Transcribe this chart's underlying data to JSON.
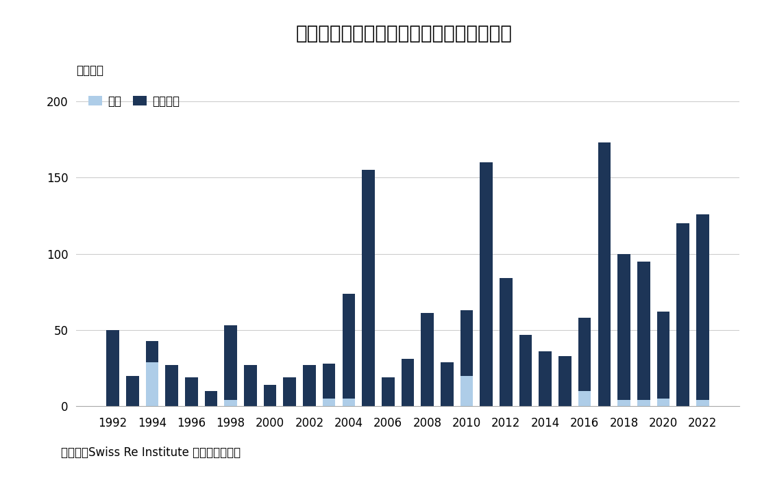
{
  "title": "図表１　世界の自然災害による保険損害額",
  "ylabel": "十億ドル",
  "source": "（資料）Swiss Re Institute を元に筆者作成",
  "years": [
    1992,
    1993,
    1994,
    1995,
    1996,
    1997,
    1998,
    1999,
    2000,
    2001,
    2002,
    2003,
    2004,
    2005,
    2006,
    2007,
    2008,
    2009,
    2010,
    2011,
    2012,
    2013,
    2014,
    2015,
    2016,
    2017,
    2018,
    2019,
    2020,
    2021,
    2022
  ],
  "earthquake": [
    0,
    0,
    29,
    0,
    0,
    0,
    4,
    0,
    0,
    0,
    0,
    5,
    5,
    0,
    0,
    0,
    0,
    0,
    20,
    0,
    0,
    0,
    0,
    0,
    10,
    0,
    4,
    4,
    5,
    0,
    4
  ],
  "climate": [
    50,
    20,
    14,
    27,
    19,
    10,
    49,
    27,
    14,
    19,
    27,
    23,
    69,
    155,
    19,
    31,
    61,
    29,
    43,
    160,
    84,
    47,
    36,
    33,
    48,
    173,
    96,
    91,
    57,
    120,
    122
  ],
  "earthquake_color": "#aecde8",
  "climate_color": "#1d3557",
  "background_color": "#ffffff",
  "legend_earthquake": "地震",
  "legend_climate": "気候関連",
  "ylim": [
    0,
    210
  ],
  "yticks": [
    0,
    50,
    100,
    150,
    200
  ],
  "xtick_years": [
    1992,
    1994,
    1996,
    1998,
    2000,
    2002,
    2004,
    2006,
    2008,
    2010,
    2012,
    2014,
    2016,
    2018,
    2020,
    2022
  ],
  "title_fontsize": 20,
  "axis_fontsize": 12,
  "tick_fontsize": 12,
  "source_fontsize": 12
}
